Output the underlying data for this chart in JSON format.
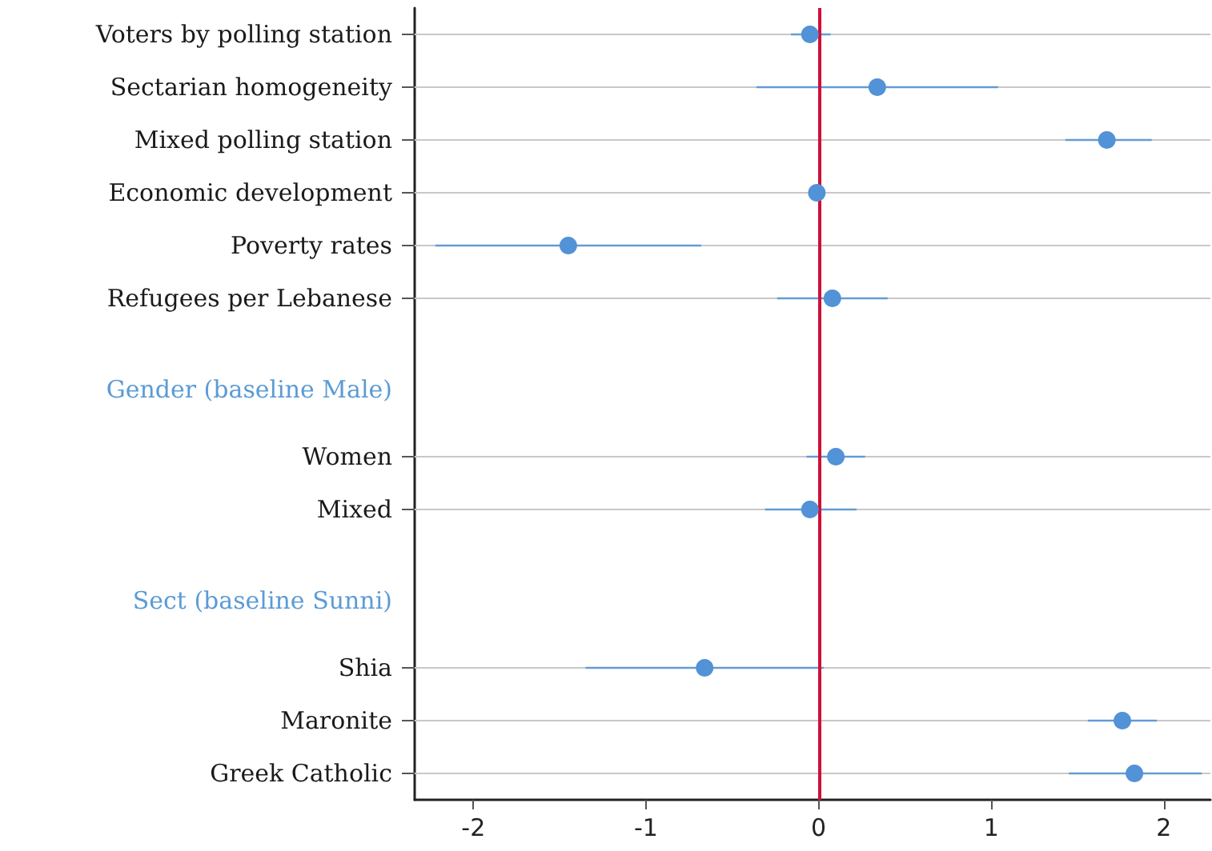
{
  "chart_data": {
    "type": "scatter",
    "orientation": "horizontal",
    "categories": [
      "Voters by polling station",
      "Sectarian homogeneity",
      "Mixed polling station",
      "Economic development",
      "Poverty rates",
      "Refugees per Lebanese",
      null,
      "Gender (baseline Male)",
      "Women",
      "Mixed",
      null,
      "Sect (baseline Sunni)",
      "Shia",
      "Maronite",
      "Greek Catholic"
    ],
    "values": [
      -0.05,
      0.34,
      1.67,
      -0.01,
      -1.45,
      0.08,
      null,
      null,
      0.1,
      -0.05,
      null,
      null,
      -0.66,
      1.76,
      1.83
    ],
    "errors": [
      [
        -0.16,
        0.07
      ],
      [
        -0.36,
        1.04
      ],
      [
        1.43,
        1.93
      ],
      null,
      [
        -2.22,
        -0.68
      ],
      [
        -0.24,
        0.4
      ],
      null,
      null,
      [
        -0.07,
        0.27
      ],
      [
        -0.31,
        0.22
      ],
      null,
      null,
      [
        -1.35,
        0.03
      ],
      [
        1.56,
        1.96
      ],
      [
        1.45,
        2.22
      ]
    ],
    "color": "#5292d6",
    "xlim": [
      -2.34,
      2.27
    ],
    "xticks": [
      -2,
      -1,
      0,
      1,
      2
    ],
    "grid": "y",
    "marker": "circle",
    "ref_lines": [
      {
        "axis": "x",
        "value": 0,
        "label": null,
        "color": "#d0103a"
      }
    ]
  }
}
